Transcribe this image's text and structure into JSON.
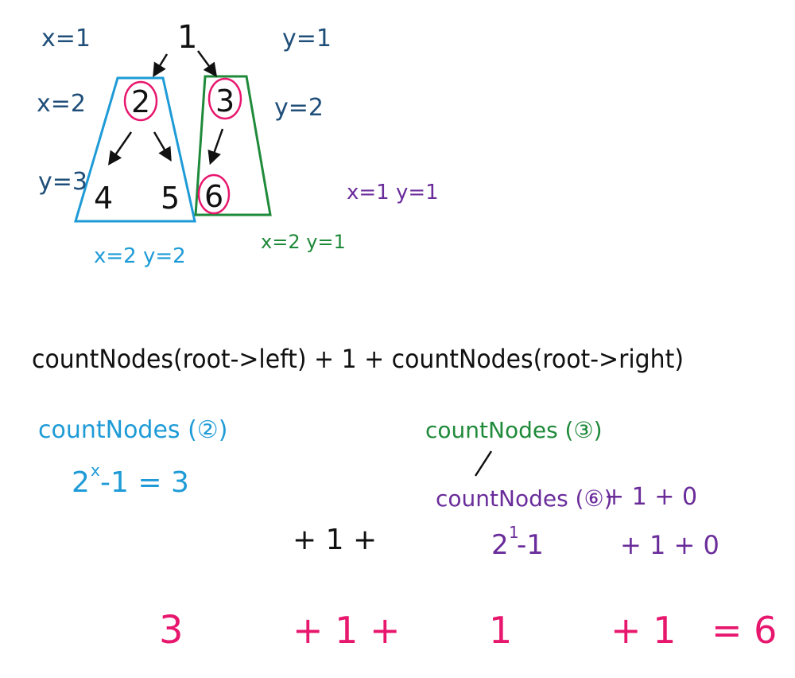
{
  "colors": {
    "black": "#111111",
    "navy": "#1f4e79",
    "cyan": "#1e9bd7",
    "green": "#1f8a3a",
    "purple": "#6a2c9a",
    "pink": "#e8176e"
  },
  "tree": {
    "root": "1",
    "left_child": "2",
    "right_child": "3",
    "left_left": "4",
    "left_right": "5",
    "right_left": "6"
  },
  "annotations": {
    "level1_x": "x=1",
    "level2_x": "x=2",
    "level3_y": "y=3",
    "right_y1": "y=1",
    "right_y2": "y=2",
    "left_subtree_xy": "x=2 y=2",
    "right_subtree_xy": "x=2 y=1",
    "node6_xy": "x=1 y=1"
  },
  "formula": {
    "main": "countNodes(root->left) + 1 + countNodes(root->right)",
    "left_call": "countNodes (②)",
    "left_result": "2",
    "left_exp": "x",
    "left_rest": "-1 = 3",
    "right_call": "countNodes (③)",
    "right_sub_call": "countNodes (⑥)",
    "right_sub_rest": "+ 1 + 0",
    "middle_plus": "+ 1 +",
    "right_calc_base": "2",
    "right_calc_exp": "1",
    "right_calc_rest": "-1",
    "right_calc_tail": "+ 1 + 0"
  },
  "result": {
    "term1": "3",
    "op1": "+ 1 +",
    "term2": "1",
    "op2": "+ 1",
    "equals": "= 6"
  }
}
